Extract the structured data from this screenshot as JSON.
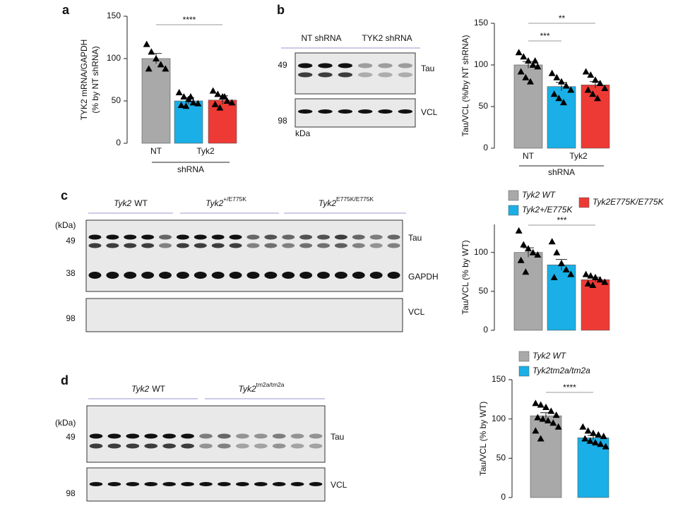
{
  "panels": [
    "a",
    "b",
    "c",
    "d"
  ],
  "blots": [
    {
      "headers": [
        {
          "gene": "NT shRNA"
        },
        {
          "gene": "TYK2 shRNA"
        }
      ],
      "markers": [
        "49",
        "98"
      ],
      "unit": "kDa",
      "bands": [
        "Tau",
        "VCL"
      ]
    },
    {
      "headers": [
        {
          "gene": "Tyk2",
          "label": "WT"
        },
        {
          "gene": "Tyk2",
          "sup": "+/E775K"
        },
        {
          "gene": "Tyk2",
          "sup": "E775K/E775K"
        }
      ],
      "markers": [
        "49",
        "38",
        "98"
      ],
      "unit": "(kDa)",
      "bands": [
        "Tau",
        "GAPDH",
        "VCL"
      ]
    },
    {
      "headers": [
        {
          "gene": "Tyk2",
          "label": "WT"
        },
        {
          "gene": "Tyk2",
          "sup": "tm2a/tm2a"
        }
      ],
      "markers": [
        "49",
        "98"
      ],
      "unit": "(kDa)",
      "bands": [
        "Tau",
        "VCL"
      ]
    }
  ],
  "chart_data": [
    {
      "type": "bar",
      "ylabel": [
        "TYK2 mRNA/GAPDH",
        "(% by NT shRNA)"
      ],
      "categories": [
        "NT",
        "Tyk2",
        null
      ],
      "group_label": "shRNA",
      "values": [
        100,
        50,
        51
      ],
      "errors": [
        6,
        4,
        5
      ],
      "colors": [
        "#a9a9a9",
        "#1aafe6",
        "#ee3a35"
      ],
      "points": [
        [
          117,
          108,
          100,
          93,
          88,
          88
        ],
        [
          60,
          55,
          52,
          48,
          47,
          45,
          44,
          55
        ],
        [
          62,
          58,
          55,
          50,
          48,
          46,
          42,
          55
        ]
      ],
      "ylim": [
        0,
        150
      ],
      "yticks": [
        0,
        50,
        100,
        150
      ],
      "significance": [
        {
          "label": "****",
          "from": 0,
          "to": 2
        }
      ]
    },
    {
      "type": "bar",
      "ylabel": "Tau/VCL (%/by NT shRNA)",
      "categories": [
        "NT",
        "Tyk2",
        null
      ],
      "group_label": "shRNA",
      "values": [
        100,
        74,
        76
      ],
      "errors": [
        4,
        5,
        4
      ],
      "colors": [
        "#a9a9a9",
        "#1aafe6",
        "#ee3a35"
      ],
      "points": [
        [
          115,
          110,
          105,
          100,
          98,
          92,
          85,
          80,
          105
        ],
        [
          90,
          85,
          80,
          75,
          70,
          65,
          60,
          55
        ],
        [
          92,
          88,
          82,
          78,
          72,
          70,
          65,
          60
        ]
      ],
      "ylim": [
        0,
        150
      ],
      "yticks": [
        0,
        50,
        100,
        150
      ],
      "significance": [
        {
          "label": "***",
          "from": 0,
          "to": 1
        },
        {
          "label": "**",
          "from": 0,
          "to": 2
        }
      ]
    },
    {
      "type": "bar",
      "ylabel": "Tau/VCL (% by WT)",
      "series": [
        {
          "name": "Tyk2 WT",
          "color": "#a9a9a9"
        },
        {
          "name": "Tyk2+/E775K",
          "color": "#1aafe6"
        },
        {
          "name": "Tyk2E775K/E775K",
          "color": "#ee3a35"
        }
      ],
      "values": [
        100,
        84,
        65
      ],
      "errors": [
        6,
        7,
        3
      ],
      "colors": [
        "#a9a9a9",
        "#1aafe6",
        "#ee3a35"
      ],
      "points": [
        [
          128,
          110,
          105,
          100,
          97,
          90,
          75
        ],
        [
          114,
          100,
          86,
          78,
          72,
          68
        ],
        [
          72,
          70,
          68,
          65,
          62,
          60,
          58
        ]
      ],
      "ylim": [
        0,
        136
      ],
      "yticks": [
        0,
        50,
        100
      ],
      "significance": [
        {
          "label": "***",
          "from": 0,
          "to": 2
        }
      ]
    },
    {
      "type": "bar",
      "ylabel": "Tau/VCL (% by WT)",
      "series": [
        {
          "name": "Tyk2 WT",
          "color": "#a9a9a9"
        },
        {
          "name": "Tyk2tm2a/tm2a",
          "color": "#1aafe6"
        }
      ],
      "values": [
        104,
        76
      ],
      "errors": [
        4,
        3
      ],
      "colors": [
        "#a9a9a9",
        "#1aafe6"
      ],
      "points": [
        [
          120,
          118,
          115,
          110,
          105,
          102,
          100,
          98,
          95,
          90,
          85,
          75
        ],
        [
          90,
          85,
          82,
          80,
          78,
          75,
          72,
          70,
          68,
          65
        ]
      ],
      "ylim": [
        0,
        150
      ],
      "yticks": [
        0,
        50,
        100,
        150
      ],
      "significance": [
        {
          "label": "****",
          "from": 0,
          "to": 1
        }
      ]
    }
  ]
}
